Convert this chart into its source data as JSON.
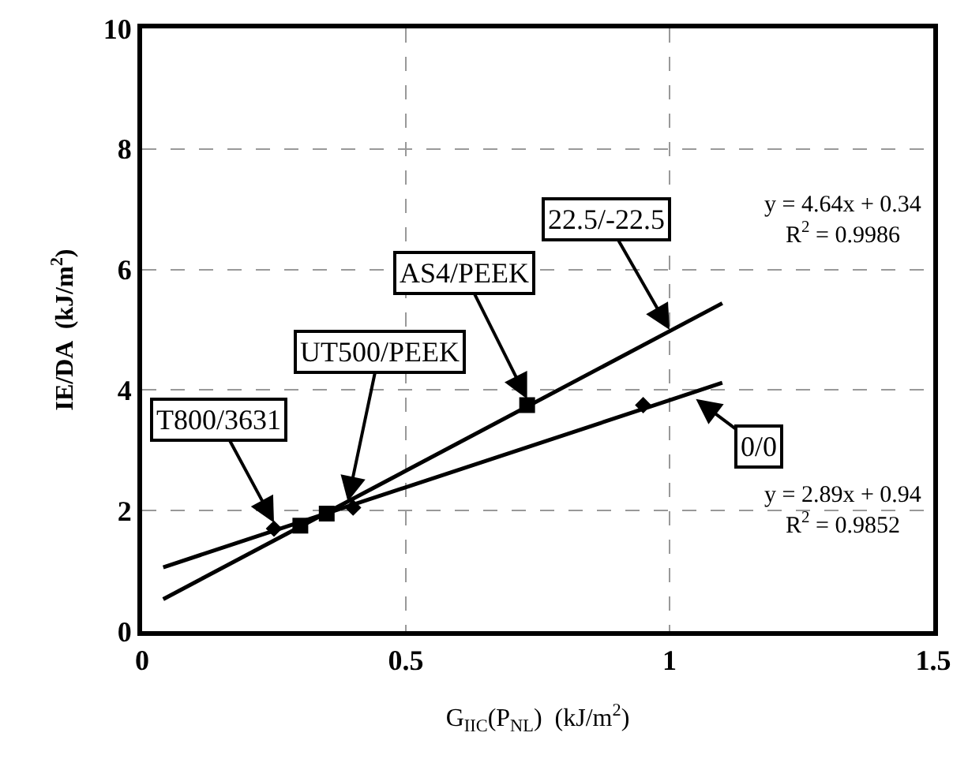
{
  "chart_data": {
    "type": "scatter",
    "xlabel": "G$_{IIC}$(P$_{NL}$)  (kJ/m$^{2}$)",
    "ylabel": "IE/DA  (kJ/m$^{2}$)",
    "xlim": [
      0,
      1.5
    ],
    "xticks": [
      0,
      0.5,
      1,
      1.5
    ],
    "ylim": [
      0,
      10
    ],
    "yticks": [
      0,
      2,
      4,
      6,
      8,
      10
    ],
    "grid": true,
    "series": [
      {
        "color": "#000000",
        "marker": "square",
        "x": [
          0.3,
          0.35,
          0.73
        ],
        "values": [
          1.75,
          1.95,
          3.75
        ]
      },
      {
        "color": "#000000",
        "marker": "diamond",
        "x": [
          0.25,
          0.4,
          0.95
        ],
        "values": [
          1.7,
          2.05,
          3.75
        ]
      },
      {
        "type": "line",
        "color": "#000000",
        "marker": "none",
        "x": [
          0.04,
          1.1
        ],
        "values": [
          0.53,
          5.44
        ]
      },
      {
        "type": "line",
        "color": "#000000",
        "marker": "none",
        "x": [
          0.04,
          1.1
        ],
        "values": [
          1.06,
          4.12
        ]
      }
    ],
    "annotations": [
      {
        "text": "T800/3631",
        "x": 0.25,
        "y": 1.8
      },
      {
        "text": "UT500/PEEK",
        "x": 0.39,
        "y": 2.15
      },
      {
        "text": "AS4/PEEK",
        "x": 0.73,
        "y": 3.85
      },
      {
        "text": "22.5/-22.5",
        "x": 1.0,
        "y": 5.0
      },
      {
        "text": "0/0",
        "x": 1.05,
        "y": 3.85
      },
      "y = 4.64x + 0.34\nR$^{2}$ = 0.9986",
      "y = 2.89x + 0.94\nR$^{2}$ = 0.9852"
    ]
  }
}
